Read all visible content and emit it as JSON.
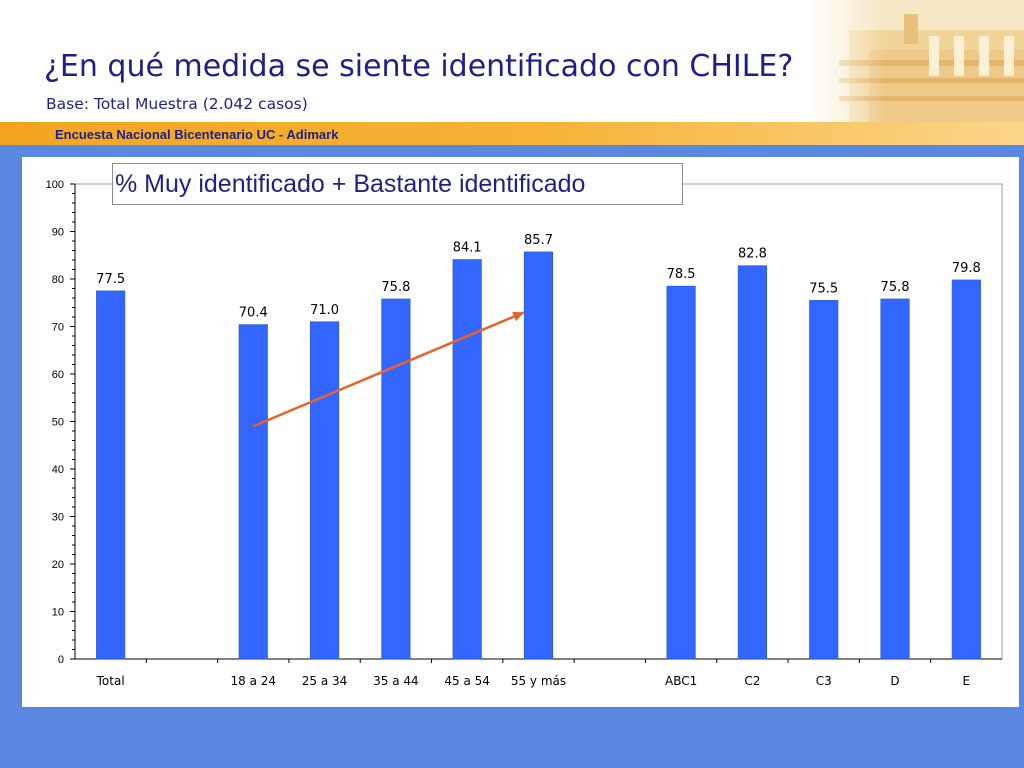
{
  "header": {
    "title": "¿En qué medida se siente identificado con CHILE?",
    "subtitle": "Base: Total Muestra (2.042 casos)",
    "band_label": "Encuesta Nacional Bicentenario UC - Adimark"
  },
  "colors": {
    "title": "#1f1f8c",
    "band": "#f4a82a",
    "background": "#5a87df",
    "bar": "#3366ff",
    "trend_arrow": "#e8622a"
  },
  "chart_data": {
    "type": "bar",
    "title": "% Muy identificado + Bastante identificado",
    "xlabel": "",
    "ylabel": "",
    "ylim": [
      0,
      100
    ],
    "yticks": [
      0,
      10,
      20,
      30,
      40,
      50,
      60,
      70,
      80,
      90,
      100
    ],
    "grid": false,
    "categories": [
      "Total",
      "",
      "18 a 24",
      "25 a 34",
      "35 a 44",
      "45 a 54",
      "55 y más",
      "",
      "ABC1",
      "C2",
      "C3",
      "D",
      "E"
    ],
    "values": [
      77.5,
      null,
      70.4,
      71.0,
      75.8,
      84.1,
      85.7,
      null,
      78.5,
      82.8,
      75.5,
      75.8,
      79.8
    ],
    "value_labels": [
      "77.5",
      "",
      "70.4",
      "71.0",
      "75.8",
      "84.1",
      "85.7",
      "",
      "78.5",
      "82.8",
      "75.5",
      "75.8",
      "79.8"
    ],
    "trend_arrow": {
      "from": [
        "18 a 24",
        49
      ],
      "to": [
        "55 y más",
        73
      ]
    }
  }
}
